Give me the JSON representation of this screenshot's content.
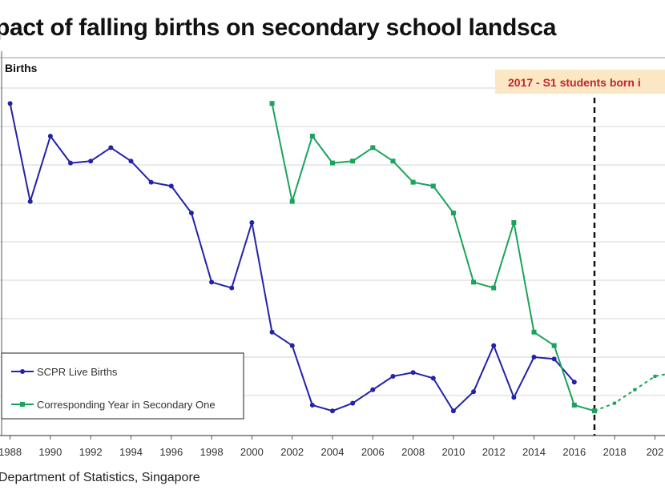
{
  "chart_data": {
    "type": "line",
    "title": "pact of falling births on secondary school landsca",
    "ylabel": "Births",
    "annotation": "2017 - S1 students born i",
    "source": "Department of Statistics, Singapore",
    "x_ticks": [
      "1988",
      "1990",
      "1992",
      "1994",
      "1996",
      "1998",
      "2000",
      "2002",
      "2004",
      "2006",
      "2008",
      "2010",
      "2012",
      "2014",
      "2016",
      "2018",
      "202"
    ],
    "xlim": [
      1987.5,
      2020.5
    ],
    "y_unit": "gridline steps (unlabelled)",
    "ylim": [
      0,
      9
    ],
    "grid": true,
    "legend_position": "bottom-left",
    "marker_line_year": 2017,
    "colors": {
      "births": "#2222aa",
      "secondary_one": "#1aa35a",
      "annotation_text": "#c0262c",
      "annotation_bg": "#fbe7c4"
    },
    "series": [
      {
        "name": "SCPR Live Births",
        "x": [
          1988,
          1989,
          1990,
          1991,
          1992,
          1993,
          1994,
          1995,
          1996,
          1997,
          1998,
          1999,
          2000,
          2001,
          2002,
          2003,
          2004,
          2005,
          2006,
          2007,
          2008,
          2009,
          2010,
          2011,
          2012,
          2013,
          2014,
          2015,
          2016
        ],
        "values": [
          8.6,
          6.05,
          7.75,
          7.05,
          7.1,
          7.45,
          7.1,
          6.55,
          6.45,
          5.75,
          3.95,
          3.8,
          5.5,
          2.65,
          2.3,
          0.75,
          0.6,
          0.8,
          1.15,
          1.5,
          1.6,
          1.45,
          0.6,
          1.1,
          2.3,
          0.95,
          2.0,
          1.95,
          1.35
        ]
      },
      {
        "name": "Corresponding Year in Secondary One",
        "x": [
          2001,
          2002,
          2003,
          2004,
          2005,
          2006,
          2007,
          2008,
          2009,
          2010,
          2011,
          2012,
          2013,
          2014,
          2015,
          2016,
          2017
        ],
        "values": [
          8.6,
          6.05,
          7.75,
          7.05,
          7.1,
          7.45,
          7.1,
          6.55,
          6.45,
          5.75,
          3.95,
          3.8,
          5.5,
          2.65,
          2.3,
          0.75,
          0.6
        ]
      },
      {
        "name": "",
        "dashed": true,
        "x": [
          2017,
          2018,
          2019,
          2020,
          2021
        ],
        "values": [
          0.6,
          0.8,
          1.15,
          1.5,
          1.6
        ]
      }
    ]
  }
}
